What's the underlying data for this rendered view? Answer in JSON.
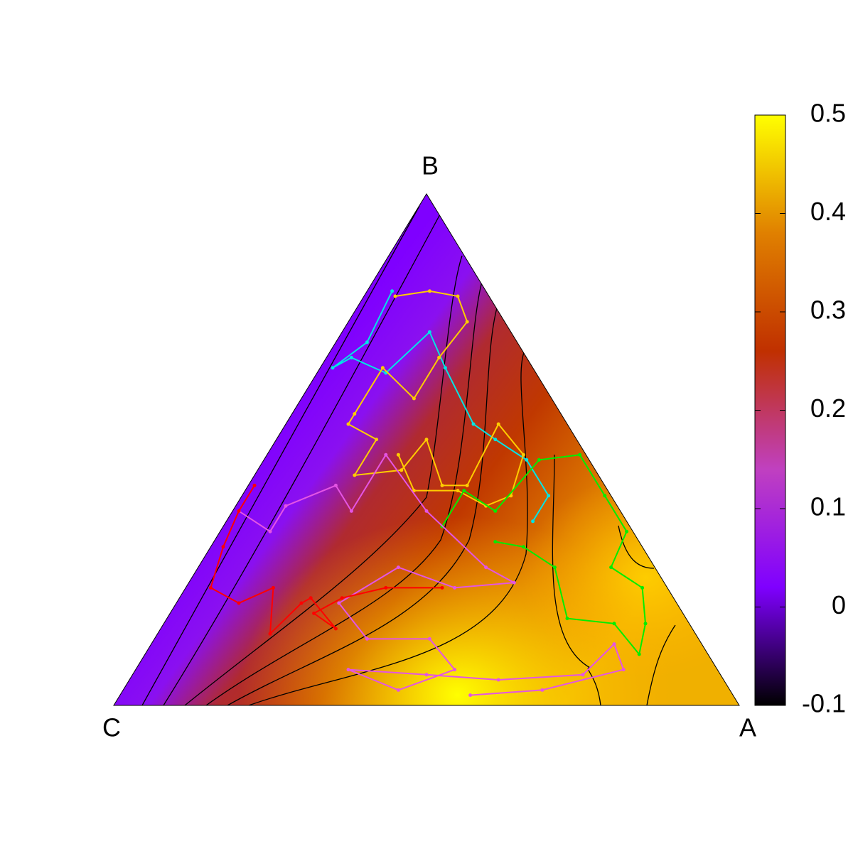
{
  "chart_data": {
    "type": "ternary",
    "corners": {
      "A": "A",
      "B": "B",
      "C": "C"
    },
    "colorbar": {
      "zlim": [
        -0.1,
        0.5
      ],
      "zticks": [
        0.5,
        0.4,
        0.3,
        0.2,
        0.1,
        0,
        -0.1
      ],
      "colors": [
        "#000000",
        "#7f00ff",
        "#c040c0",
        "#c03000",
        "#e08000",
        "#ffff00"
      ]
    },
    "series": [
      {
        "color": "#00e5e5",
        "a": [
          0.04,
          0.05,
          0.02,
          0.04,
          0.11,
          0.14,
          0.2,
          0.3,
          0.35,
          0.42,
          0.49,
          0.49
        ],
        "b": [
          0.81,
          0.71,
          0.66,
          0.68,
          0.65,
          0.73,
          0.66,
          0.55,
          0.52,
          0.48,
          0.41,
          0.36
        ]
      },
      {
        "color": "#ffcc00",
        "a": [
          0.05,
          0.1,
          0.15,
          0.19,
          0.18,
          0.18,
          0.1,
          0.1,
          0.1,
          0.16,
          0.16,
          0.23,
          0.24,
          0.31,
          0.35,
          0.34,
          0.41,
          0.43,
          0.4,
          0.34,
          0.27,
          0.21
        ],
        "b": [
          0.8,
          0.81,
          0.8,
          0.75,
          0.68,
          0.6,
          0.66,
          0.57,
          0.55,
          0.52,
          0.45,
          0.46,
          0.52,
          0.43,
          0.43,
          0.55,
          0.49,
          0.41,
          0.39,
          0.42,
          0.42,
          0.49
        ]
      },
      {
        "color": "#00ee00",
        "a": [
          0.35,
          0.35,
          0.42,
          0.44,
          0.5,
          0.58,
          0.65,
          0.66,
          0.73,
          0.77,
          0.79,
          0.72,
          0.64,
          0.57,
          0.5,
          0.45
        ],
        "b": [
          0.35,
          0.42,
          0.38,
          0.48,
          0.49,
          0.41,
          0.34,
          0.27,
          0.23,
          0.16,
          0.1,
          0.16,
          0.17,
          0.27,
          0.31,
          0.32
        ]
      },
      {
        "color": "#e455e4",
        "a": [
          0.01,
          0.08,
          0.08,
          0.14,
          0.19,
          0.19,
          0.31,
          0.46,
          0.52,
          0.43,
          0.32,
          0.26,
          0.34,
          0.44,
          0.51,
          0.44,
          0.34,
          0.47,
          0.59,
          0.72,
          0.74,
          0.78,
          0.67,
          0.56
        ],
        "b": [
          0.38,
          0.34,
          0.39,
          0.43,
          0.38,
          0.49,
          0.38,
          0.27,
          0.24,
          0.23,
          0.27,
          0.2,
          0.13,
          0.13,
          0.07,
          0.03,
          0.07,
          0.06,
          0.05,
          0.06,
          0.12,
          0.07,
          0.03,
          0.02
        ]
      },
      {
        "color": "#ff0000",
        "a": [
          0.01,
          0.01,
          0.02,
          0.04,
          0.1,
          0.14,
          0.18,
          0.2,
          0.21,
          0.28,
          0.23,
          0.26,
          0.32,
          0.41
        ],
        "b": [
          0.43,
          0.38,
          0.31,
          0.23,
          0.2,
          0.23,
          0.14,
          0.2,
          0.21,
          0.15,
          0.18,
          0.21,
          0.23,
          0.23
        ]
      }
    ]
  }
}
